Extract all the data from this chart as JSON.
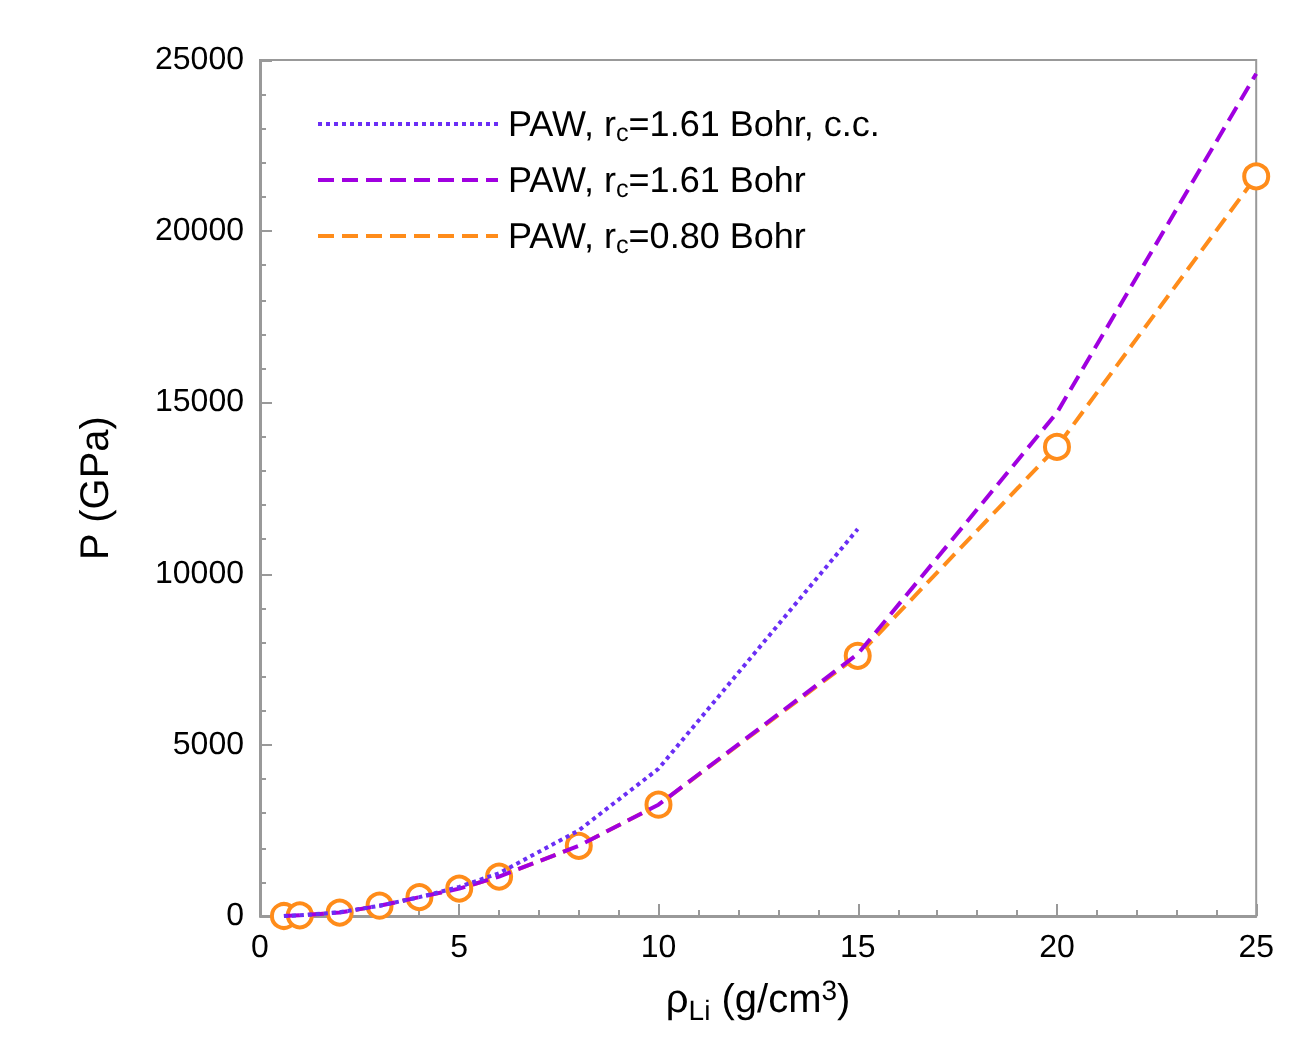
{
  "chart_data": {
    "type": "line",
    "xlabel": "ρ$_{Li}$ (g/cm$^{3}$)",
    "ylabel": "P (GPa)",
    "xlim": [
      0,
      25
    ],
    "xticks": [
      0,
      5,
      10,
      15,
      20,
      25
    ],
    "ylim": [
      0,
      25000
    ],
    "yticks": [
      0,
      5000,
      10000,
      15000,
      20000,
      25000
    ],
    "grid": false,
    "legend": "top left",
    "series": [
      {
        "name": "PAW, r$_{c}$=1.61 Bohr, c.c.",
        "color": "#6a2ef5",
        "line_style": "dotted",
        "marker": "none",
        "x": [
          0.6,
          1,
          2,
          3,
          4,
          5,
          6,
          8,
          10,
          15
        ],
        "values": [
          0,
          20,
          110,
          300,
          550,
          850,
          1250,
          2500,
          4300,
          11300
        ]
      },
      {
        "name": "PAW, r$_{c}$=1.61 Bohr",
        "color": "#a000e0",
        "line_style": "dashed",
        "marker": "none",
        "x": [
          0.6,
          1,
          2,
          3,
          4,
          5,
          6,
          8,
          10,
          15,
          20,
          25
        ],
        "values": [
          0,
          20,
          100,
          300,
          550,
          800,
          1150,
          2050,
          3250,
          7650,
          14700,
          24600
        ]
      },
      {
        "name": "PAW, r$_{c}$=0.80 Bohr",
        "color": "#ff8c1a",
        "line_style": "dashed",
        "marker": "circle",
        "x": [
          0.6,
          1,
          2,
          3,
          4,
          5,
          6,
          8,
          10,
          15,
          20,
          25
        ],
        "values": [
          0,
          20,
          100,
          300,
          550,
          800,
          1150,
          2050,
          3250,
          7600,
          13700,
          21600
        ]
      }
    ]
  }
}
